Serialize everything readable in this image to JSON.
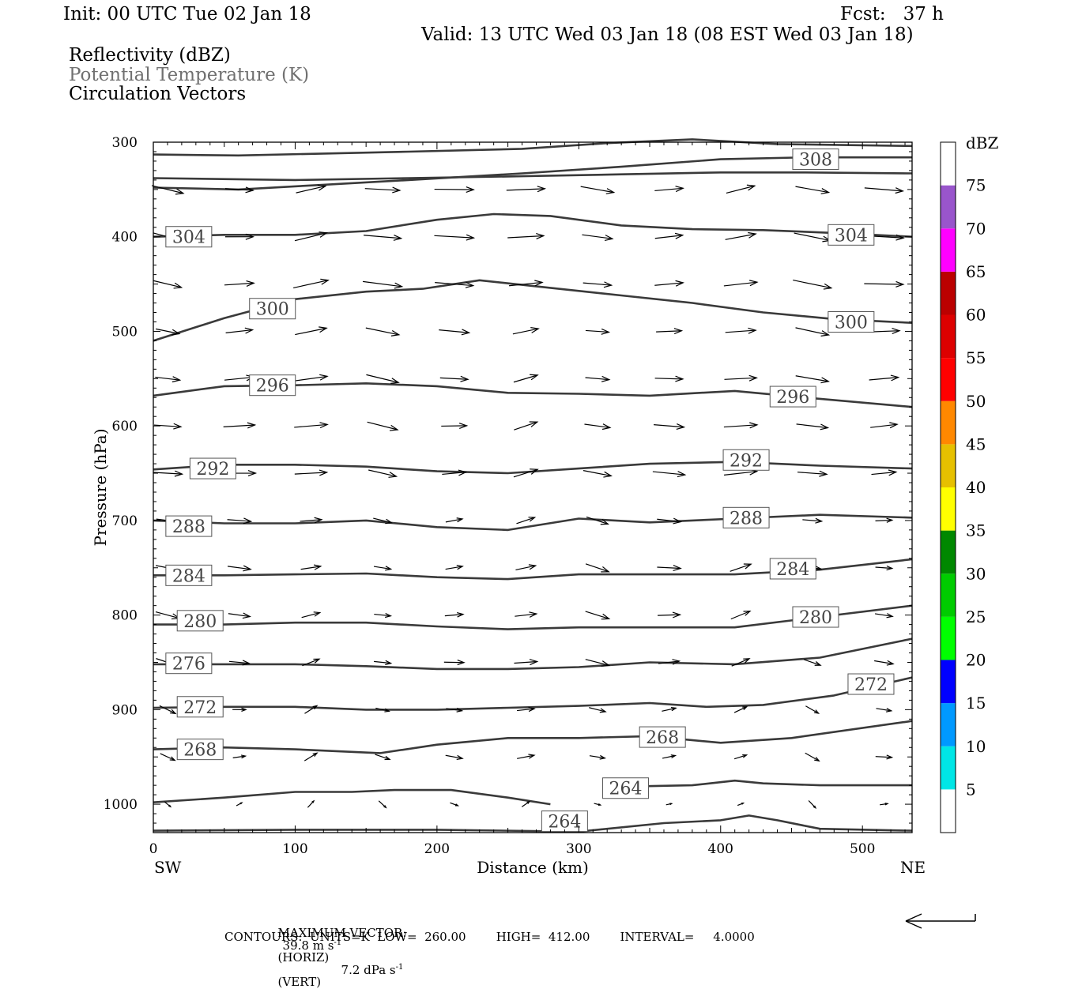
{
  "header": {
    "init": "Init: 00 UTC Tue 02 Jan 18",
    "fcst": "Fcst:   37 h",
    "valid": "Valid: 13 UTC Wed 03 Jan 18 (08 EST Wed 03 Jan 18)"
  },
  "fields": [
    "Reflectivity (dBZ)",
    "Potential Temperature (K)",
    "Circulation Vectors"
  ],
  "footer": {
    "max_vector_label": "MAXIMUM VECTOR:",
    "horiz_value": "39.8 m s",
    "horiz_unit": "(HORIZ)",
    "vert_value": "7.2 dPa s",
    "vert_unit": "(VERT)",
    "superscript": "-1",
    "contours": "CONTOURS:  UNITS=K  LOW=  260.00        HIGH=  412.00        INTERVAL=     4.0000"
  },
  "colors": {
    "contour": "#3a3a3a",
    "label_border": "#555555",
    "gray_text": "#707070"
  },
  "chart_data": {
    "type": "cross-section contour",
    "xlabel": "Distance (km)",
    "ylabel": "Pressure (hPa)",
    "xlim": [
      0,
      535
    ],
    "ylim": [
      1030,
      300
    ],
    "x_ticks": [
      0,
      100,
      200,
      300,
      400,
      500
    ],
    "y_ticks": [
      300,
      400,
      500,
      600,
      700,
      800,
      900,
      1000
    ],
    "x_end_labels": {
      "left": "SW",
      "right": "NE"
    },
    "colorbar": {
      "title": "dBZ",
      "levels": [
        5,
        10,
        15,
        20,
        25,
        30,
        35,
        40,
        45,
        50,
        55,
        60,
        65,
        70,
        75
      ],
      "colors": [
        "#ffffff",
        "#00e6e6",
        "#0099ff",
        "#0000ff",
        "#00ff00",
        "#00cc00",
        "#008800",
        "#ffff00",
        "#e6c000",
        "#ff8800",
        "#ff0000",
        "#dd0000",
        "#bb0000",
        "#ff00ff",
        "#9955cc",
        "#ffffff"
      ]
    },
    "contours": [
      {
        "value": 308,
        "label_at": [
          [
            467,
            318
          ]
        ],
        "points": [
          [
            0,
            313
          ],
          [
            60,
            314
          ],
          [
            120,
            312
          ],
          [
            180,
            310
          ],
          [
            260,
            307
          ],
          [
            320,
            301
          ],
          [
            380,
            297
          ],
          [
            440,
            302
          ],
          [
            535,
            304
          ]
        ]
      },
      {
        "value": null,
        "points": [
          [
            0,
            348
          ],
          [
            60,
            350
          ],
          [
            120,
            345
          ],
          [
            180,
            340
          ],
          [
            260,
            333
          ],
          [
            330,
            326
          ],
          [
            400,
            318
          ],
          [
            460,
            316
          ],
          [
            535,
            316
          ]
        ]
      },
      {
        "value": null,
        "points": [
          [
            0,
            338
          ],
          [
            100,
            340
          ],
          [
            180,
            338
          ],
          [
            260,
            336
          ],
          [
            330,
            334
          ],
          [
            400,
            332
          ],
          [
            460,
            332
          ],
          [
            535,
            333
          ]
        ]
      },
      {
        "value": 304,
        "label_at": [
          [
            25,
            400
          ],
          [
            492,
            398
          ]
        ],
        "points": [
          [
            0,
            400
          ],
          [
            50,
            398
          ],
          [
            100,
            398
          ],
          [
            150,
            394
          ],
          [
            200,
            382
          ],
          [
            240,
            376
          ],
          [
            280,
            378
          ],
          [
            330,
            388
          ],
          [
            380,
            392
          ],
          [
            430,
            393
          ],
          [
            480,
            396
          ],
          [
            535,
            400
          ]
        ]
      },
      {
        "value": 300,
        "label_at": [
          [
            84,
            476
          ],
          [
            492,
            490
          ]
        ],
        "points": [
          [
            0,
            510
          ],
          [
            50,
            486
          ],
          [
            100,
            466
          ],
          [
            150,
            458
          ],
          [
            190,
            455
          ],
          [
            230,
            446
          ],
          [
            280,
            454
          ],
          [
            330,
            462
          ],
          [
            380,
            470
          ],
          [
            430,
            480
          ],
          [
            480,
            487
          ],
          [
            535,
            491
          ]
        ]
      },
      {
        "value": 296,
        "label_at": [
          [
            84,
            557
          ],
          [
            451,
            569
          ]
        ],
        "points": [
          [
            0,
            568
          ],
          [
            50,
            558
          ],
          [
            100,
            557
          ],
          [
            150,
            555
          ],
          [
            200,
            558
          ],
          [
            250,
            565
          ],
          [
            300,
            566
          ],
          [
            350,
            568
          ],
          [
            410,
            563
          ],
          [
            460,
            570
          ],
          [
            535,
            580
          ]
        ]
      },
      {
        "value": 292,
        "label_at": [
          [
            42,
            645
          ],
          [
            418,
            636
          ]
        ],
        "points": [
          [
            0,
            646
          ],
          [
            50,
            641
          ],
          [
            100,
            641
          ],
          [
            150,
            643
          ],
          [
            200,
            648
          ],
          [
            250,
            650
          ],
          [
            300,
            645
          ],
          [
            350,
            640
          ],
          [
            410,
            638
          ],
          [
            470,
            642
          ],
          [
            535,
            645
          ]
        ]
      },
      {
        "value": 288,
        "label_at": [
          [
            25,
            706
          ],
          [
            418,
            697
          ]
        ],
        "points": [
          [
            0,
            700
          ],
          [
            50,
            703
          ],
          [
            100,
            703
          ],
          [
            150,
            700
          ],
          [
            200,
            707
          ],
          [
            250,
            710
          ],
          [
            300,
            698
          ],
          [
            350,
            702
          ],
          [
            410,
            698
          ],
          [
            470,
            694
          ],
          [
            535,
            697
          ]
        ]
      },
      {
        "value": 284,
        "label_at": [
          [
            25,
            758
          ],
          [
            451,
            751
          ]
        ],
        "points": [
          [
            0,
            758
          ],
          [
            50,
            758
          ],
          [
            100,
            757
          ],
          [
            150,
            756
          ],
          [
            200,
            760
          ],
          [
            250,
            762
          ],
          [
            300,
            757
          ],
          [
            350,
            757
          ],
          [
            410,
            757
          ],
          [
            470,
            752
          ],
          [
            535,
            741
          ]
        ]
      },
      {
        "value": 280,
        "label_at": [
          [
            33,
            806
          ],
          [
            467,
            802
          ]
        ],
        "points": [
          [
            0,
            810
          ],
          [
            50,
            810
          ],
          [
            100,
            808
          ],
          [
            150,
            808
          ],
          [
            200,
            812
          ],
          [
            250,
            815
          ],
          [
            300,
            813
          ],
          [
            350,
            813
          ],
          [
            410,
            813
          ],
          [
            470,
            802
          ],
          [
            535,
            790
          ]
        ]
      },
      {
        "value": 276,
        "label_at": [
          [
            25,
            851
          ]
        ],
        "points": [
          [
            0,
            852
          ],
          [
            50,
            852
          ],
          [
            100,
            852
          ],
          [
            150,
            854
          ],
          [
            200,
            857
          ],
          [
            250,
            857
          ],
          [
            300,
            855
          ],
          [
            350,
            850
          ],
          [
            410,
            852
          ],
          [
            470,
            845
          ],
          [
            535,
            825
          ]
        ]
      },
      {
        "value": 272,
        "label_at": [
          [
            33,
            897
          ],
          [
            506,
            873
          ]
        ],
        "points": [
          [
            0,
            898
          ],
          [
            50,
            897
          ],
          [
            100,
            897
          ],
          [
            150,
            900
          ],
          [
            200,
            900
          ],
          [
            250,
            898
          ],
          [
            300,
            896
          ],
          [
            350,
            893
          ],
          [
            390,
            897
          ],
          [
            430,
            895
          ],
          [
            480,
            885
          ],
          [
            535,
            866
          ]
        ]
      },
      {
        "value": 268,
        "label_at": [
          [
            33,
            942
          ],
          [
            359,
            929
          ]
        ],
        "points": [
          [
            0,
            942
          ],
          [
            50,
            940
          ],
          [
            100,
            942
          ],
          [
            160,
            946
          ],
          [
            200,
            937
          ],
          [
            250,
            930
          ],
          [
            300,
            930
          ],
          [
            350,
            928
          ],
          [
            400,
            935
          ],
          [
            450,
            930
          ],
          [
            535,
            912
          ]
        ]
      },
      {
        "value": 264,
        "label_at": [
          [
            290,
            1018
          ],
          [
            333,
            983
          ]
        ],
        "points": [
          [
            0,
            998
          ],
          [
            50,
            993
          ],
          [
            100,
            987
          ],
          [
            140,
            987
          ],
          [
            170,
            985
          ],
          [
            210,
            985
          ],
          [
            250,
            993
          ],
          [
            280,
            1000
          ]
        ]
      },
      {
        "value": 264,
        "points": [
          [
            330,
            990
          ],
          [
            345,
            981
          ],
          [
            380,
            980
          ],
          [
            410,
            975
          ],
          [
            430,
            978
          ],
          [
            470,
            980
          ],
          [
            535,
            980
          ]
        ]
      },
      {
        "value": null,
        "points": [
          [
            0,
            1028
          ],
          [
            100,
            1027
          ],
          [
            200,
            1027
          ],
          [
            300,
            1029
          ],
          [
            360,
            1020
          ],
          [
            400,
            1017
          ],
          [
            420,
            1012
          ],
          [
            440,
            1017
          ],
          [
            470,
            1026
          ],
          [
            535,
            1028
          ]
        ]
      }
    ],
    "vectors_note": "circulation vectors (u, omega) shown on a regular grid; mostly westerly flow"
  }
}
